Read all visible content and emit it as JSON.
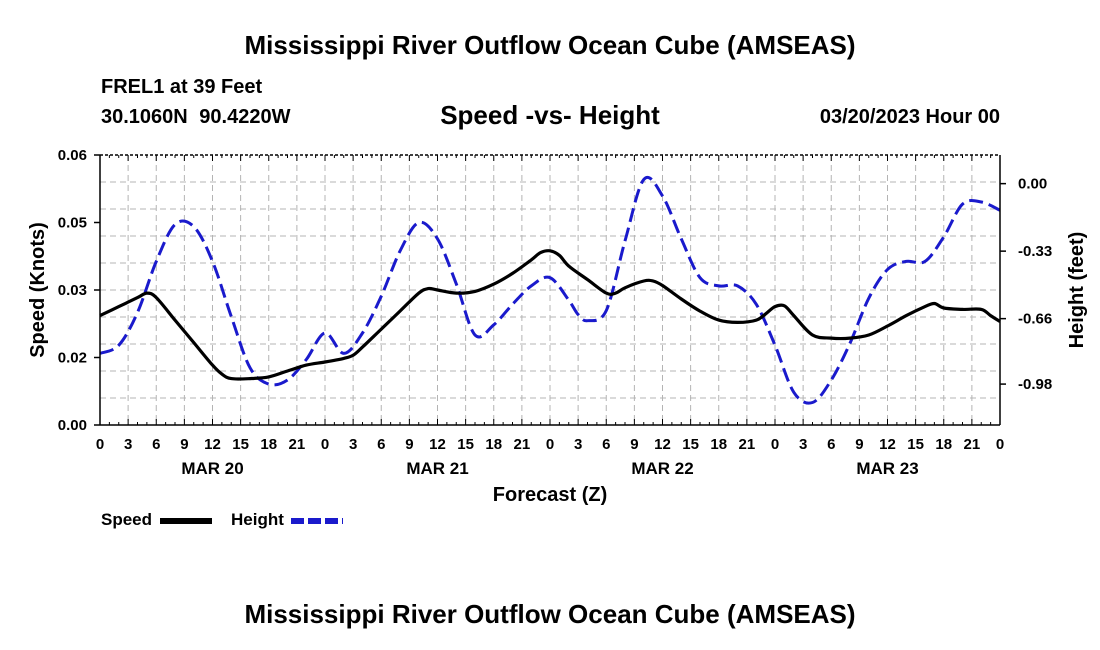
{
  "header": {
    "title": "Mississippi River Outflow Ocean Cube (AMSEAS)",
    "station": "FREL1 at 39 Feet",
    "coordinates": "30.1060N  90.4220W",
    "subtitle": "Speed -vs- Height",
    "date": "03/20/2023 Hour 00"
  },
  "footer": {
    "title": "Mississippi River Outflow Ocean Cube (AMSEAS)"
  },
  "legend": {
    "speed_label": "Speed",
    "height_label": "Height"
  },
  "colors": {
    "speed": "#000000",
    "height": "#1a1acc",
    "grid": "#b4b4b4"
  },
  "chart_data": {
    "type": "line",
    "xlabel": "Forecast (Z)",
    "ylabel_left": "Speed (Knots)",
    "ylabel_right": "Height (feet)",
    "x_unit": "hours from 03/20/2023 00Z",
    "xlim": [
      0,
      96
    ],
    "ylim_left": [
      0,
      0.06
    ],
    "ylim_right": [
      -1.18,
      0.14
    ],
    "y_ticks_left": [
      "0.00",
      "0.02",
      "0.03",
      "0.05",
      "0.06"
    ],
    "y_tick_values_left": [
      0,
      0.015,
      0.03,
      0.045,
      0.06
    ],
    "y_ticks_right": [
      "0.00",
      "-0.33",
      "-0.66",
      "-0.98"
    ],
    "y_tick_values_right": [
      0,
      -0.33,
      -0.66,
      -0.98
    ],
    "x_tick_labels": [
      "0",
      "3",
      "6",
      "9",
      "12",
      "15",
      "18",
      "21",
      "0",
      "3",
      "6",
      "9",
      "12",
      "15",
      "18",
      "21",
      "0",
      "3",
      "6",
      "9",
      "12",
      "15",
      "18",
      "21",
      "0",
      "3",
      "6",
      "9",
      "12",
      "15",
      "18",
      "21",
      "0"
    ],
    "day_labels": [
      {
        "label": "MAR 20",
        "x": 12
      },
      {
        "label": "MAR 21",
        "x": 36
      },
      {
        "label": "MAR 22",
        "x": 60
      },
      {
        "label": "MAR 23",
        "x": 84
      }
    ],
    "series": [
      {
        "name": "Speed",
        "axis": "left",
        "x": [
          0,
          2,
          4,
          5,
          6,
          8,
          10,
          12,
          13,
          14,
          16,
          18,
          20,
          22,
          24,
          26,
          27,
          28,
          30,
          32,
          34,
          35,
          36,
          38,
          40,
          42,
          44,
          46,
          47,
          48,
          49,
          50,
          52,
          54,
          55,
          56,
          58,
          59,
          60,
          62,
          64,
          66,
          68,
          70,
          71,
          72,
          73,
          74,
          76,
          78,
          80,
          82,
          84,
          86,
          88,
          89,
          90,
          92,
          94,
          95,
          96
        ],
        "values": [
          0.0243,
          0.0263,
          0.0283,
          0.0293,
          0.0283,
          0.0233,
          0.0183,
          0.0133,
          0.0113,
          0.0103,
          0.0103,
          0.0107,
          0.012,
          0.0133,
          0.014,
          0.0148,
          0.0155,
          0.0173,
          0.0213,
          0.0253,
          0.0293,
          0.0303,
          0.03,
          0.0293,
          0.0297,
          0.0313,
          0.0337,
          0.0367,
          0.0383,
          0.0387,
          0.0377,
          0.0353,
          0.0323,
          0.0293,
          0.0293,
          0.0305,
          0.032,
          0.032,
          0.031,
          0.028,
          0.0253,
          0.0233,
          0.0228,
          0.0233,
          0.0247,
          0.0263,
          0.0265,
          0.0243,
          0.02,
          0.0193,
          0.0193,
          0.02,
          0.022,
          0.0243,
          0.0263,
          0.027,
          0.026,
          0.0257,
          0.0257,
          0.0243,
          0.023
        ]
      },
      {
        "name": "Height",
        "axis": "right",
        "x": [
          0,
          2,
          4,
          6,
          8,
          10,
          12,
          14,
          16,
          18,
          20,
          22,
          24,
          26,
          28,
          30,
          32,
          34,
          36,
          38,
          40,
          42,
          44,
          46,
          48,
          50,
          51,
          52,
          54,
          56,
          58,
          60,
          62,
          64,
          66,
          68,
          70,
          72,
          74,
          76,
          78,
          80,
          82,
          84,
          86,
          88,
          90,
          92,
          94,
          96
        ],
        "values": [
          -0.83,
          -0.79,
          -0.63,
          -0.38,
          -0.2,
          -0.21,
          -0.38,
          -0.65,
          -0.9,
          -0.98,
          -0.96,
          -0.86,
          -0.73,
          -0.83,
          -0.73,
          -0.55,
          -0.33,
          -0.19,
          -0.27,
          -0.49,
          -0.74,
          -0.69,
          -0.59,
          -0.5,
          -0.46,
          -0.57,
          -0.64,
          -0.67,
          -0.62,
          -0.28,
          0.02,
          -0.06,
          -0.27,
          -0.46,
          -0.5,
          -0.5,
          -0.59,
          -0.79,
          -1.02,
          -1.07,
          -0.96,
          -0.78,
          -0.56,
          -0.42,
          -0.38,
          -0.38,
          -0.26,
          -0.1,
          -0.09,
          -0.13
        ]
      }
    ]
  }
}
